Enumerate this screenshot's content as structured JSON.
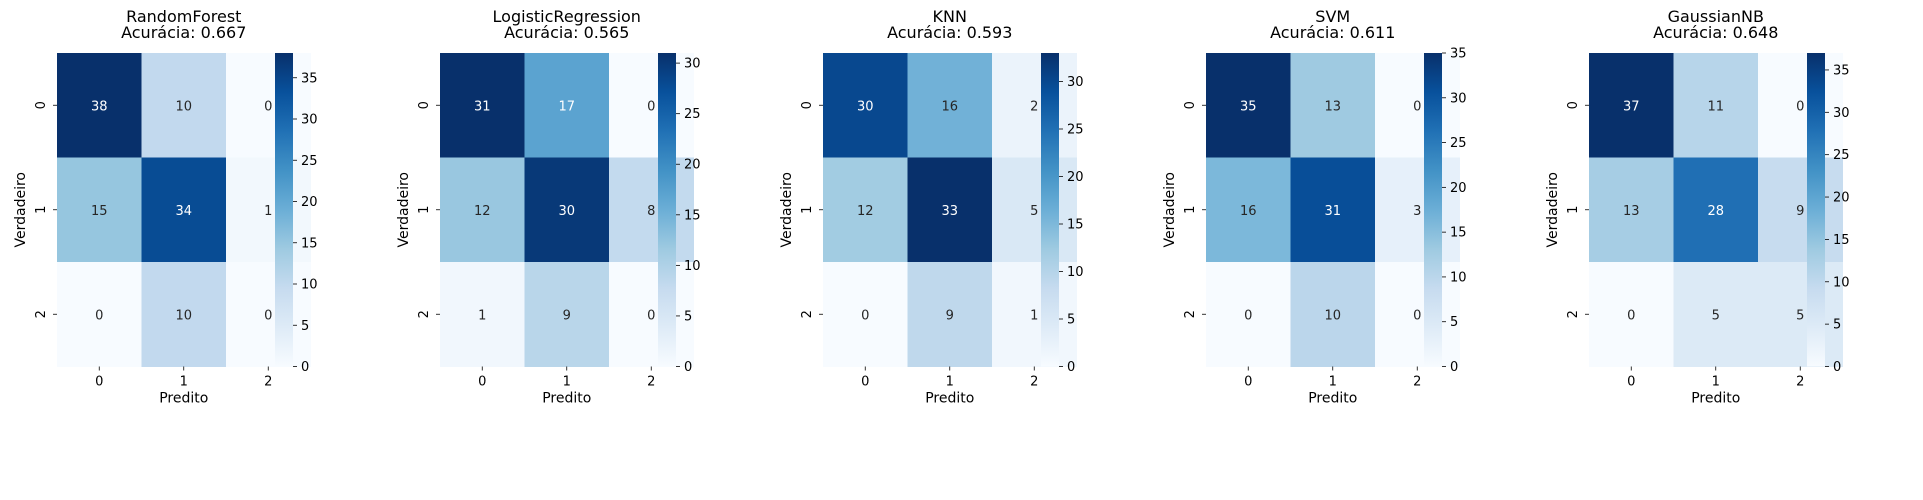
{
  "chart_data": [
    {
      "type": "heatmap",
      "title": "RandomForest",
      "subtitle": "Acurácia: 0.667",
      "xlabel": "Predito",
      "ylabel": "Verdadeiro",
      "x_categories": [
        "0",
        "1",
        "2"
      ],
      "y_categories": [
        "0",
        "1",
        "2"
      ],
      "values": [
        [
          38,
          10,
          0
        ],
        [
          15,
          34,
          1
        ],
        [
          0,
          10,
          0
        ]
      ],
      "colormap": "Blues",
      "colorbar": {
        "min": 0,
        "max": 38,
        "ticks": [
          0,
          5,
          10,
          15,
          20,
          25,
          30,
          35
        ]
      }
    },
    {
      "type": "heatmap",
      "title": "LogisticRegression",
      "subtitle": "Acurácia: 0.565",
      "xlabel": "Predito",
      "ylabel": "Verdadeiro",
      "x_categories": [
        "0",
        "1",
        "2"
      ],
      "y_categories": [
        "0",
        "1",
        "2"
      ],
      "values": [
        [
          31,
          17,
          0
        ],
        [
          12,
          30,
          8
        ],
        [
          1,
          9,
          0
        ]
      ],
      "colormap": "Blues",
      "colorbar": {
        "min": 0,
        "max": 31,
        "ticks": [
          0,
          5,
          10,
          15,
          20,
          25,
          30
        ]
      }
    },
    {
      "type": "heatmap",
      "title": "KNN",
      "subtitle": "Acurácia: 0.593",
      "xlabel": "Predito",
      "ylabel": "Verdadeiro",
      "x_categories": [
        "0",
        "1",
        "2"
      ],
      "y_categories": [
        "0",
        "1",
        "2"
      ],
      "values": [
        [
          30,
          16,
          2
        ],
        [
          12,
          33,
          5
        ],
        [
          0,
          9,
          1
        ]
      ],
      "colormap": "Blues",
      "colorbar": {
        "min": 0,
        "max": 33,
        "ticks": [
          0,
          5,
          10,
          15,
          20,
          25,
          30
        ]
      }
    },
    {
      "type": "heatmap",
      "title": "SVM",
      "subtitle": "Acurácia: 0.611",
      "xlabel": "Predito",
      "ylabel": "Verdadeiro",
      "x_categories": [
        "0",
        "1",
        "2"
      ],
      "y_categories": [
        "0",
        "1",
        "2"
      ],
      "values": [
        [
          35,
          13,
          0
        ],
        [
          16,
          31,
          3
        ],
        [
          0,
          10,
          0
        ]
      ],
      "colormap": "Blues",
      "colorbar": {
        "min": 0,
        "max": 35,
        "ticks": [
          0,
          5,
          10,
          15,
          20,
          25,
          30,
          35
        ]
      }
    },
    {
      "type": "heatmap",
      "title": "GaussianNB",
      "subtitle": "Acurácia: 0.648",
      "xlabel": "Predito",
      "ylabel": "Verdadeiro",
      "x_categories": [
        "0",
        "1",
        "2"
      ],
      "y_categories": [
        "0",
        "1",
        "2"
      ],
      "values": [
        [
          37,
          11,
          0
        ],
        [
          13,
          28,
          9
        ],
        [
          0,
          5,
          5
        ]
      ],
      "colormap": "Blues",
      "colorbar": {
        "min": 0,
        "max": 37,
        "ticks": [
          0,
          5,
          10,
          15,
          20,
          25,
          30,
          35
        ]
      }
    }
  ]
}
